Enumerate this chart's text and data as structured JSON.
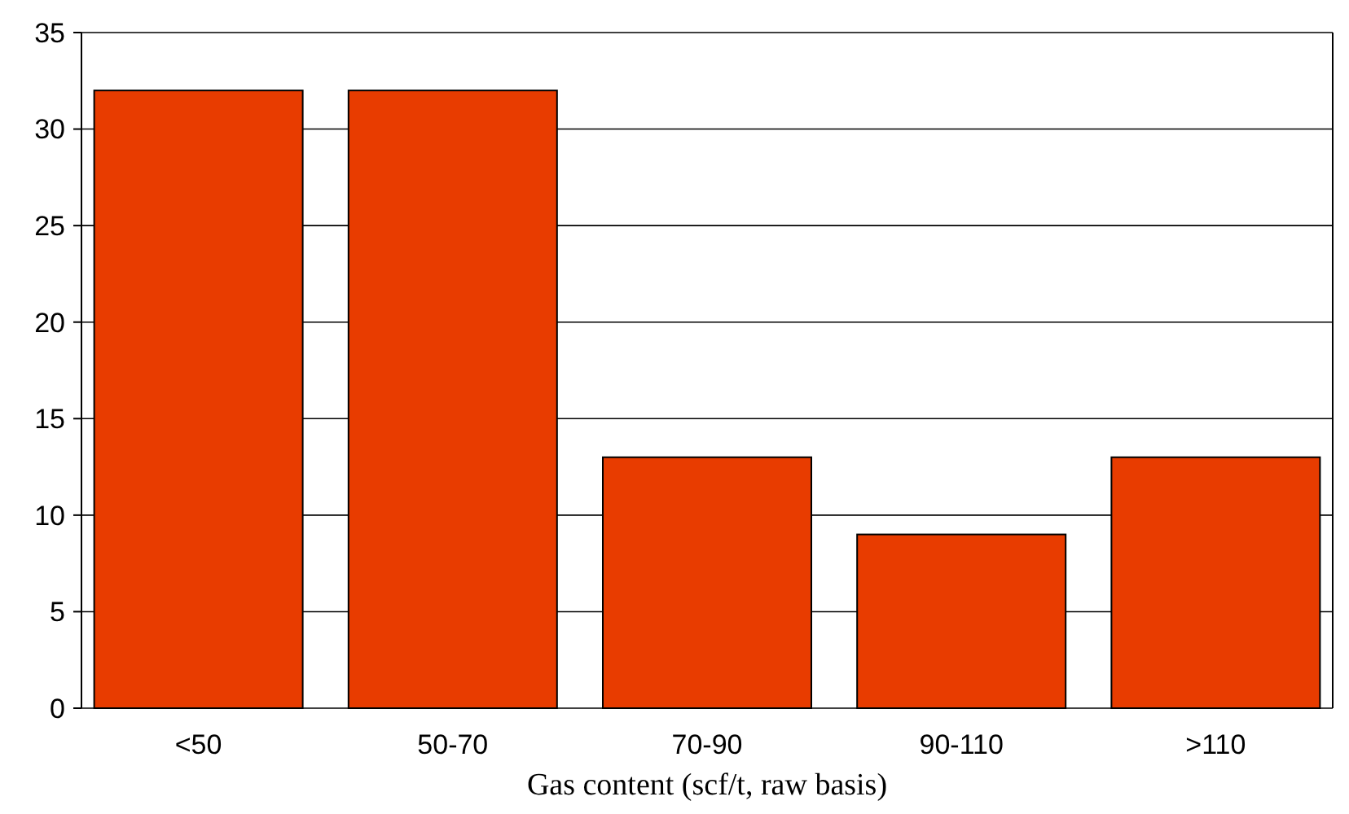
{
  "chart_data": {
    "type": "bar",
    "xlabel": "Gas content (scf/t, raw basis)",
    "categories": [
      "<50",
      "50-70",
      "70-90",
      "90-110",
      ">110"
    ],
    "values": [
      32,
      32,
      13,
      9,
      13
    ],
    "color": "#e83c00",
    "ylim": [
      0,
      35
    ],
    "yticks": [
      0,
      5,
      10,
      15,
      20,
      25,
      30,
      35
    ],
    "grid": "y"
  }
}
